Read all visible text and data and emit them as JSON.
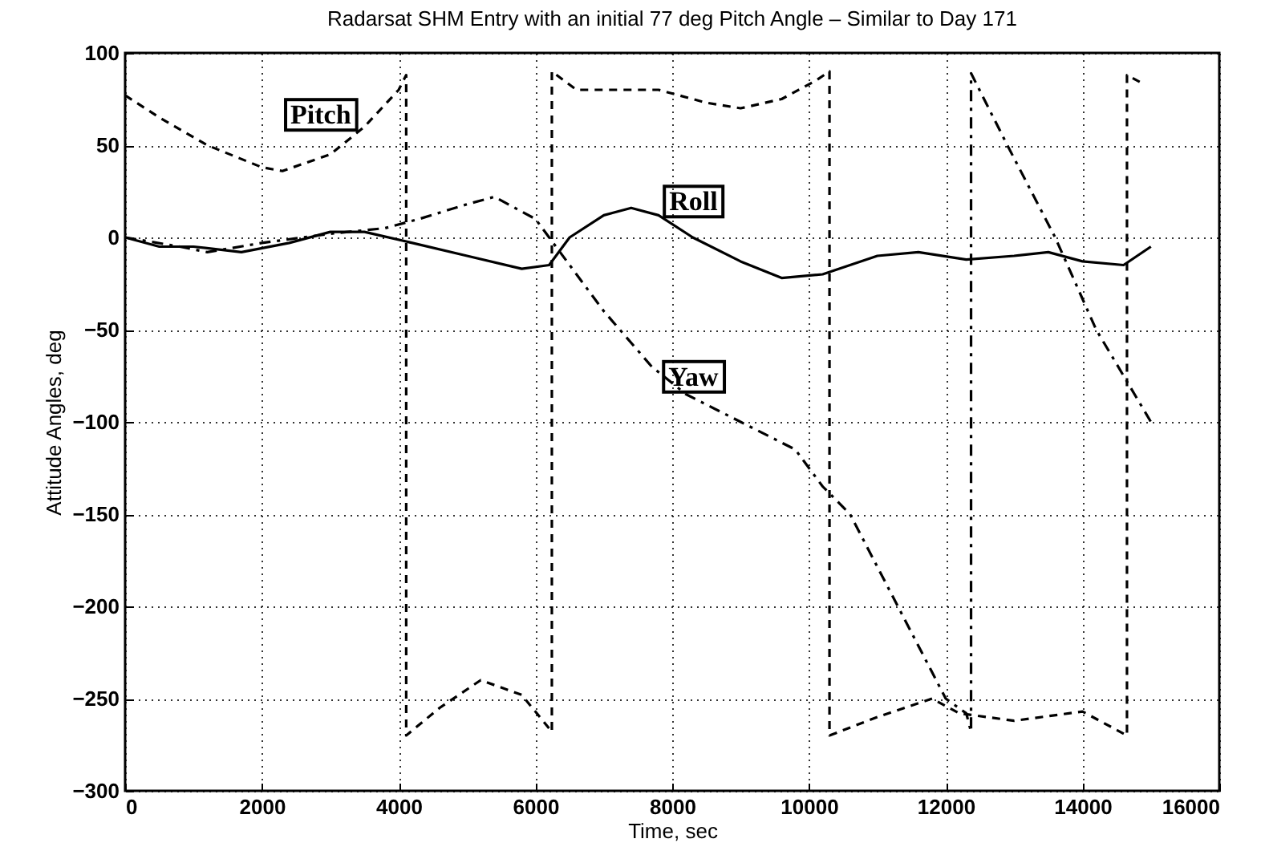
{
  "chart_data": {
    "type": "line",
    "title": "Radarsat SHM Entry with an initial 77 deg Pitch Angle – Similar to Day 171",
    "xlabel": "Time, sec",
    "ylabel": "Attitude Angles, deg",
    "xlim": [
      0,
      16000
    ],
    "xticks": [
      0,
      2000,
      4000,
      6000,
      8000,
      10000,
      12000,
      14000,
      16000
    ],
    "ylim": [
      -300,
      100
    ],
    "yticks": [
      -300,
      -250,
      -200,
      -150,
      -100,
      -50,
      0,
      50,
      100
    ],
    "grid": true,
    "series": [
      {
        "name": "Pitch",
        "color": "#000000",
        "line_style": "dashed",
        "x": [
          0,
          500,
          1200,
          2000,
          2300,
          3000,
          3500,
          4000,
          4110,
          4110,
          4600,
          5200,
          5800,
          6240,
          6240,
          6600,
          7000,
          7800,
          8500,
          9000,
          9600,
          10100,
          10300,
          10300,
          11000,
          11800,
          12200,
          13000,
          14000,
          14650,
          14650,
          14900
        ],
        "values": [
          77,
          65,
          50,
          38,
          36,
          45,
          60,
          80,
          88,
          -270,
          -255,
          -240,
          -248,
          -268,
          90,
          80,
          80,
          80,
          73,
          70,
          75,
          85,
          90,
          -270,
          -260,
          -250,
          -258,
          -262,
          -257,
          -270,
          88,
          83
        ]
      },
      {
        "name": "Roll",
        "color": "#000000",
        "line_style": "solid",
        "x": [
          0,
          500,
          1000,
          1700,
          2400,
          3000,
          3500,
          4200,
          5000,
          5800,
          6200,
          6500,
          7000,
          7400,
          7800,
          8300,
          9000,
          9600,
          10200,
          11000,
          11600,
          12300,
          13000,
          13500,
          14000,
          14600,
          15000
        ],
        "values": [
          0,
          -5,
          -5,
          -8,
          -3,
          3,
          3,
          -3,
          -10,
          -17,
          -15,
          0,
          12,
          16,
          12,
          0,
          -13,
          -22,
          -20,
          -10,
          -8,
          -12,
          -10,
          -8,
          -13,
          -15,
          -5
        ]
      },
      {
        "name": "Yaw",
        "color": "#000000",
        "line_style": "dashdot",
        "x": [
          0,
          800,
          1200,
          2000,
          3000,
          3800,
          4300,
          5000,
          5400,
          6000,
          6200,
          6500,
          7000,
          7700,
          8200,
          9000,
          9800,
          10200,
          10600,
          11300,
          12000,
          12300,
          12370,
          12370,
          12900,
          13600,
          14200,
          15000
        ],
        "values": [
          0,
          -5,
          -8,
          -3,
          2,
          5,
          10,
          18,
          22,
          10,
          0,
          -15,
          -40,
          -70,
          -85,
          -100,
          -115,
          -135,
          -150,
          -200,
          -250,
          -258,
          -268,
          89,
          50,
          0,
          -50,
          -100
        ]
      }
    ]
  }
}
